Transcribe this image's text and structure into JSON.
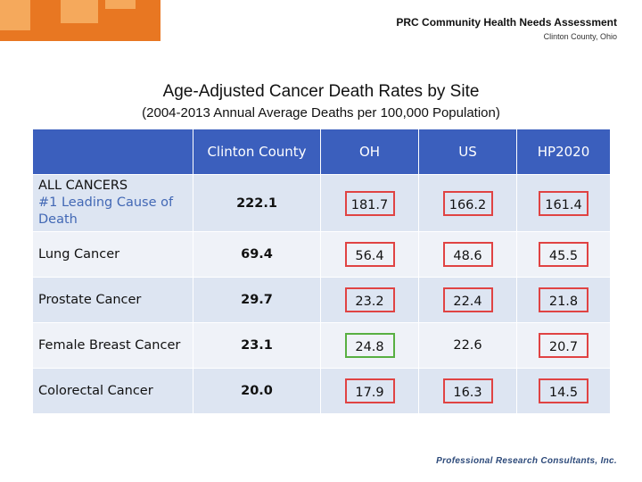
{
  "header": {
    "report_title": "PRC Community Health Needs Assessment",
    "location": "Clinton County, Ohio"
  },
  "title": "Age-Adjusted Cancer Death Rates by Site",
  "subtitle": "(2004-2013 Annual Average Deaths per 100,000 Population)",
  "columns": [
    "Clinton County",
    "OH",
    "US",
    "HP2020"
  ],
  "rows": [
    {
      "label": "ALL CANCERS",
      "sublabel": "#1 Leading Cause of Death",
      "clinton": "222.1",
      "oh": "181.7",
      "us": "166.2",
      "hp2020": "161.4"
    },
    {
      "label": "Lung Cancer",
      "clinton": "69.4",
      "oh": "56.4",
      "us": "48.6",
      "hp2020": "45.5"
    },
    {
      "label": "Prostate Cancer",
      "clinton": "29.7",
      "oh": "23.2",
      "us": "22.4",
      "hp2020": "21.8"
    },
    {
      "label": "Female Breast Cancer",
      "clinton": "23.1",
      "oh": "24.8",
      "us": "22.6",
      "hp2020": "20.7"
    },
    {
      "label": "Colorectal Cancer",
      "clinton": "20.0",
      "oh": "17.9",
      "us": "16.3",
      "hp2020": "14.5"
    }
  ],
  "colors": {
    "header_bg": "#3b5fbd",
    "row_odd": "#dde5f2",
    "row_even": "#eff2f8",
    "unfavorable_box": "#e04343",
    "favorable_box": "#58b042",
    "brand_orange": "#e87722"
  },
  "footer": {
    "company": "Professional Research Consultants, Inc."
  }
}
